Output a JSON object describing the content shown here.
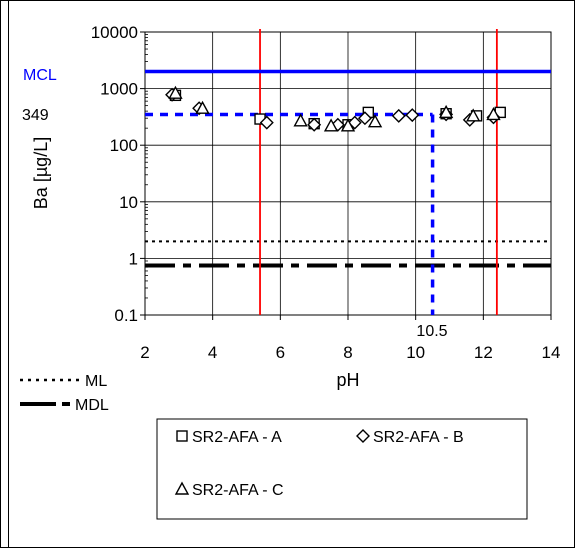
{
  "chart_data": {
    "type": "scatter",
    "title": "",
    "xlabel": "pH",
    "ylabel": "Ba [µg/L]",
    "xlim": [
      2,
      14
    ],
    "ylim": [
      0.1,
      10000
    ],
    "y_scale": "log",
    "grid": true,
    "x_ticks": [
      "2",
      "4",
      "6",
      "8",
      "10",
      "12",
      "14"
    ],
    "y_ticks": [
      "0.1",
      "1",
      "10",
      "100",
      "1000",
      "10000"
    ],
    "reference_lines": {
      "mcl": {
        "label": "MCL",
        "value": 2000,
        "color": "#0000ff"
      },
      "target": {
        "label": "349",
        "value": 349,
        "ph_label": "10.5",
        "ph": 10.5,
        "color": "#0000ff"
      },
      "ml": {
        "label": "ML",
        "value": 2,
        "color": "#000000"
      },
      "mdl": {
        "label": "MDL",
        "value": 0.75,
        "color": "#000000"
      },
      "ph_bounds": [
        5.4,
        12.4
      ],
      "ph_bounds_color": "#ff0000"
    },
    "series": [
      {
        "name": "SR2-AFA - A",
        "marker": "square",
        "points": [
          [
            2.9,
            760
          ],
          [
            5.4,
            290
          ],
          [
            7.0,
            240
          ],
          [
            8.0,
            230
          ],
          [
            8.6,
            380
          ],
          [
            10.9,
            360
          ],
          [
            11.8,
            330
          ],
          [
            12.5,
            380
          ]
        ]
      },
      {
        "name": "SR2-AFA - B",
        "marker": "diamond",
        "points": [
          [
            2.8,
            780
          ],
          [
            3.6,
            450
          ],
          [
            5.6,
            250
          ],
          [
            7.0,
            230
          ],
          [
            7.7,
            230
          ],
          [
            8.2,
            250
          ],
          [
            8.5,
            300
          ],
          [
            9.5,
            330
          ],
          [
            9.9,
            340
          ],
          [
            10.9,
            350
          ],
          [
            11.6,
            280
          ],
          [
            12.3,
            310
          ]
        ]
      },
      {
        "name": "SR2-AFA - C",
        "marker": "triangle",
        "points": [
          [
            2.9,
            830
          ],
          [
            3.7,
            450
          ],
          [
            6.6,
            270
          ],
          [
            7.5,
            220
          ],
          [
            8.0,
            220
          ],
          [
            8.8,
            260
          ],
          [
            10.9,
            380
          ],
          [
            11.7,
            330
          ],
          [
            12.3,
            350
          ]
        ]
      }
    ]
  }
}
